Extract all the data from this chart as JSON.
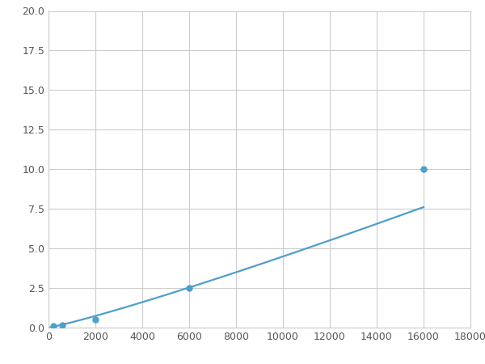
{
  "x_points": [
    200,
    600,
    2000,
    6000,
    16000
  ],
  "y_points": [
    0.08,
    0.15,
    0.5,
    2.5,
    10.0
  ],
  "line_color": "#4d9fcc",
  "marker_color": "#4d9fcc",
  "marker_size": 5,
  "line_width": 1.6,
  "xlim": [
    0,
    18000
  ],
  "ylim": [
    0,
    20.0
  ],
  "xticks": [
    0,
    2000,
    4000,
    6000,
    8000,
    10000,
    12000,
    14000,
    16000,
    18000
  ],
  "yticks": [
    0.0,
    2.5,
    5.0,
    7.5,
    10.0,
    12.5,
    15.0,
    17.5,
    20.0
  ],
  "grid_color": "#cccccc",
  "background_color": "#ffffff",
  "figure_bg": "#ffffff"
}
